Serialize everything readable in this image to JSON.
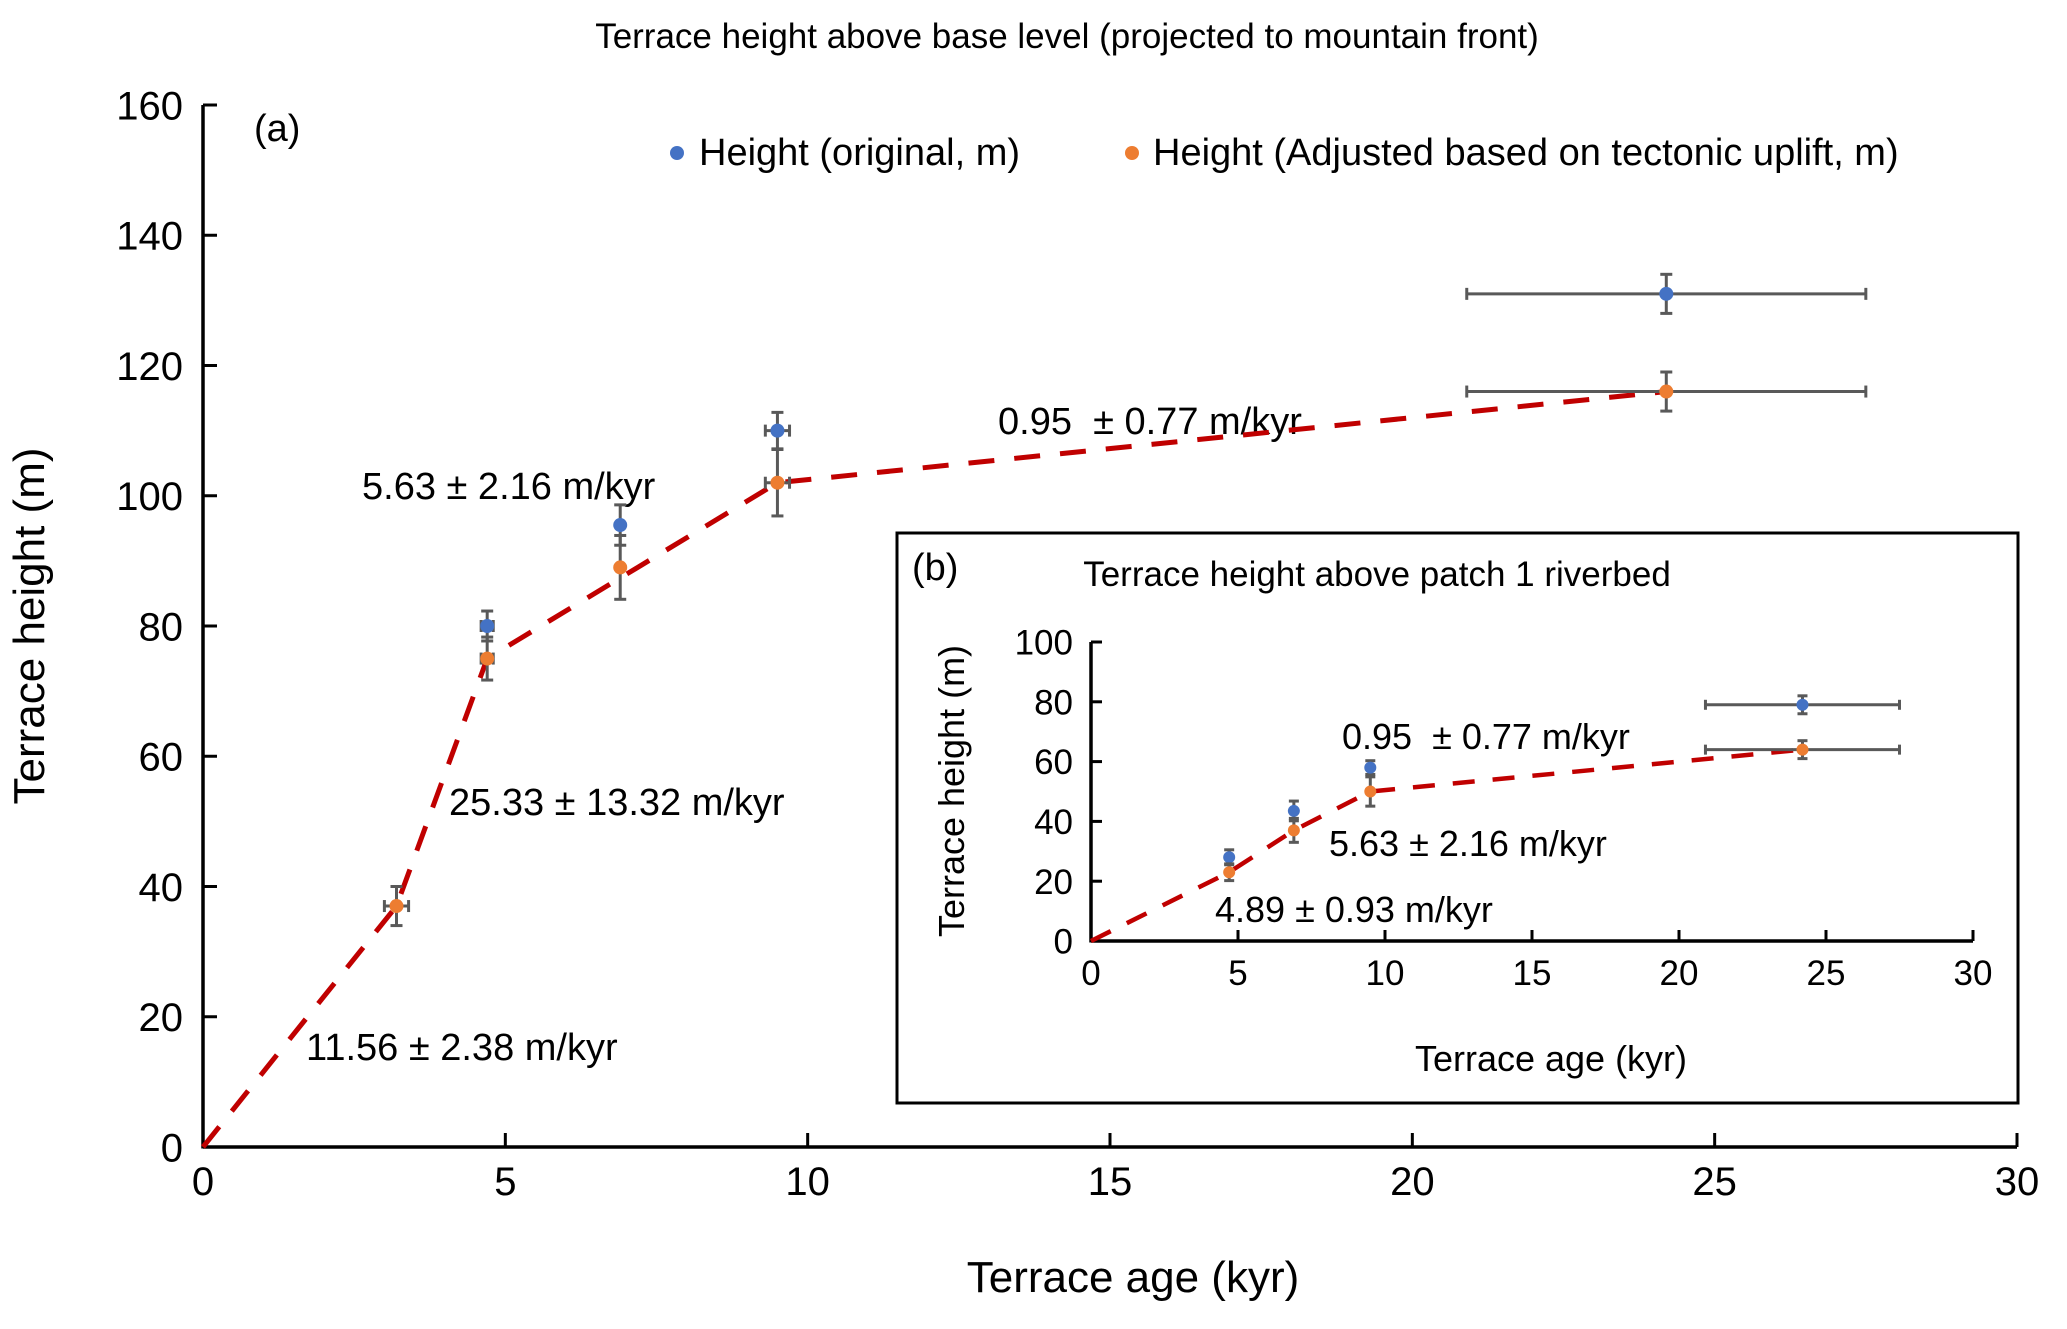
{
  "chart_data": [
    {
      "panel": "(a)",
      "type": "scatter",
      "title": "Terrace height above base level (projected to mountain front)",
      "xlabel": "Terrace age (kyr)",
      "ylabel": "Terrace height (m)",
      "xlim": [
        0,
        30
      ],
      "ylim": [
        0,
        160
      ],
      "xticks": [
        0,
        5,
        10,
        15,
        20,
        25,
        30
      ],
      "yticks": [
        0,
        20,
        40,
        60,
        80,
        100,
        120,
        140,
        160
      ],
      "grid": false,
      "legend": {
        "placement": "top-right",
        "entries": [
          "Height (original, m)",
          "Height (Adjusted based on tectonic uplift, m)"
        ]
      },
      "series": [
        {
          "name": "Height (original, m)",
          "color": "#4472c4",
          "points": [
            {
              "x": 4.7,
              "y": 80,
              "xerr": 0.1,
              "yerr": 2.3
            },
            {
              "x": 6.9,
              "y": 95.5,
              "xerr": 0,
              "yerr": 3.1
            },
            {
              "x": 9.5,
              "y": 110,
              "xerr": 0.2,
              "yerr": 2.8
            },
            {
              "x": 24.2,
              "y": 131,
              "xerr": 3.3,
              "yerr": 3
            }
          ]
        },
        {
          "name": "Height (Adjusted based on tectonic uplift, m)",
          "color": "#ed7d31",
          "points": [
            {
              "x": 3.2,
              "y": 37,
              "xerr": 0.2,
              "yerr": 3
            },
            {
              "x": 4.7,
              "y": 75,
              "xerr": 0.1,
              "yerr": 3.3
            },
            {
              "x": 6.9,
              "y": 89,
              "xerr": 0,
              "yerr": 4.9
            },
            {
              "x": 9.5,
              "y": 102,
              "xerr": 0.2,
              "yerr": 5.1
            },
            {
              "x": 24.2,
              "y": 116,
              "xerr": 3.3,
              "yerr": 3
            }
          ]
        }
      ],
      "trend_line": {
        "color": "#c00000",
        "style": "dashed",
        "points": [
          [
            0,
            0
          ],
          [
            3.2,
            37
          ],
          [
            4.7,
            75
          ],
          [
            9.5,
            102
          ],
          [
            24.2,
            116
          ]
        ]
      },
      "annotations": [
        "11.56 ± 2.38 m/kyr",
        "25.33 ± 13.32 m/kyr",
        "5.63 ± 2.16 m/kyr",
        "0.95  ± 0.77 m/kyr"
      ]
    },
    {
      "panel": "(b)",
      "type": "scatter",
      "title": "Terrace height above patch 1 riverbed",
      "xlabel": "Terrace age (kyr)",
      "ylabel": "Terrace height (m)",
      "xlim": [
        0,
        30
      ],
      "ylim": [
        0,
        100
      ],
      "xticks": [
        0,
        5,
        10,
        15,
        20,
        25,
        30
      ],
      "yticks": [
        0,
        20,
        40,
        60,
        80,
        100
      ],
      "grid": false,
      "series": [
        {
          "name": "Height (original, m)",
          "color": "#4472c4",
          "points": [
            {
              "x": 4.7,
              "y": 28,
              "xerr": 0,
              "yerr": 2.5
            },
            {
              "x": 6.9,
              "y": 43.5,
              "xerr": 0,
              "yerr": 3.3
            },
            {
              "x": 9.5,
              "y": 58,
              "xerr": 0,
              "yerr": 2.3
            },
            {
              "x": 24.2,
              "y": 79,
              "xerr": 3.3,
              "yerr": 3
            }
          ]
        },
        {
          "name": "Height (Adjusted based on tectonic uplift, m)",
          "color": "#ed7d31",
          "points": [
            {
              "x": 4.7,
              "y": 23,
              "xerr": 0,
              "yerr": 2.8
            },
            {
              "x": 6.9,
              "y": 37,
              "xerr": 0,
              "yerr": 4
            },
            {
              "x": 9.5,
              "y": 50,
              "xerr": 0,
              "yerr": 4.9
            },
            {
              "x": 24.2,
              "y": 64,
              "xerr": 3.3,
              "yerr": 3
            }
          ]
        }
      ],
      "trend_line": {
        "color": "#c00000",
        "style": "dashed",
        "points": [
          [
            0,
            0
          ],
          [
            4.7,
            23
          ],
          [
            6.9,
            37
          ],
          [
            9.5,
            50
          ],
          [
            24.2,
            64
          ]
        ]
      },
      "annotations": [
        "0.95  ± 0.77 m/kyr",
        "5.63 ± 2.16 m/kyr",
        "4.89 ± 0.93 m/kyr"
      ]
    }
  ],
  "colors": {
    "original": "#4472c4",
    "adjusted": "#ed7d31",
    "trend": "#c00000",
    "errorbar": "#595959",
    "axis": "#000000"
  }
}
